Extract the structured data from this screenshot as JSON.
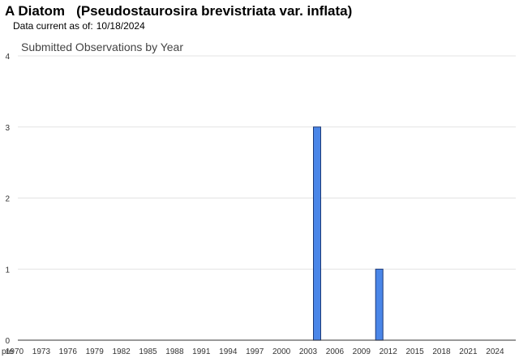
{
  "header": {
    "title": "A Diatom   (Pseudostaurosira brevistriata var. inflata)",
    "date_label": "Data current as of:",
    "date_value": "10/18/2024"
  },
  "chart_data": {
    "type": "bar",
    "title": "Submitted Observations by Year",
    "xlabel": "",
    "ylabel": "",
    "ylim": [
      0,
      4
    ],
    "yticks": [
      0,
      1,
      2,
      3,
      4
    ],
    "grid": true,
    "categories": [
      "pre 1970",
      "1970",
      "1971",
      "1972",
      "1973",
      "1974",
      "1975",
      "1976",
      "1977",
      "1978",
      "1979",
      "1980",
      "1981",
      "1982",
      "1983",
      "1984",
      "1985",
      "1986",
      "1987",
      "1988",
      "1989",
      "1990",
      "1991",
      "1992",
      "1993",
      "1994",
      "1995",
      "1996",
      "1997",
      "1998",
      "1999",
      "2000",
      "2001",
      "2002",
      "2003",
      "2004",
      "2005",
      "2006",
      "2007",
      "2008",
      "2009",
      "2010",
      "2011",
      "2012",
      "2013",
      "2014",
      "2015",
      "2016",
      "2017",
      "2018",
      "2019",
      "2020",
      "2021",
      "2022",
      "2023",
      "2024"
    ],
    "tick_labels": [
      "pre",
      "1970",
      "1973",
      "1976",
      "1979",
      "1982",
      "1985",
      "1988",
      "1991",
      "1994",
      "1997",
      "2000",
      "2003",
      "2006",
      "2009",
      "2012",
      "2015",
      "2018",
      "2021",
      "2024"
    ],
    "values": [
      0,
      0,
      0,
      0,
      0,
      0,
      0,
      0,
      0,
      0,
      0,
      0,
      0,
      0,
      0,
      0,
      0,
      0,
      0,
      0,
      0,
      0,
      0,
      0,
      0,
      0,
      0,
      0,
      0,
      0,
      0,
      0,
      0,
      0,
      0,
      3,
      0,
      0,
      0,
      0,
      0,
      0,
      1,
      0,
      0,
      0,
      0,
      0,
      0,
      0,
      0,
      0,
      0,
      0,
      0,
      0
    ],
    "bar_color": "#4a86e8",
    "bar_border_color": "#1c3a78"
  }
}
